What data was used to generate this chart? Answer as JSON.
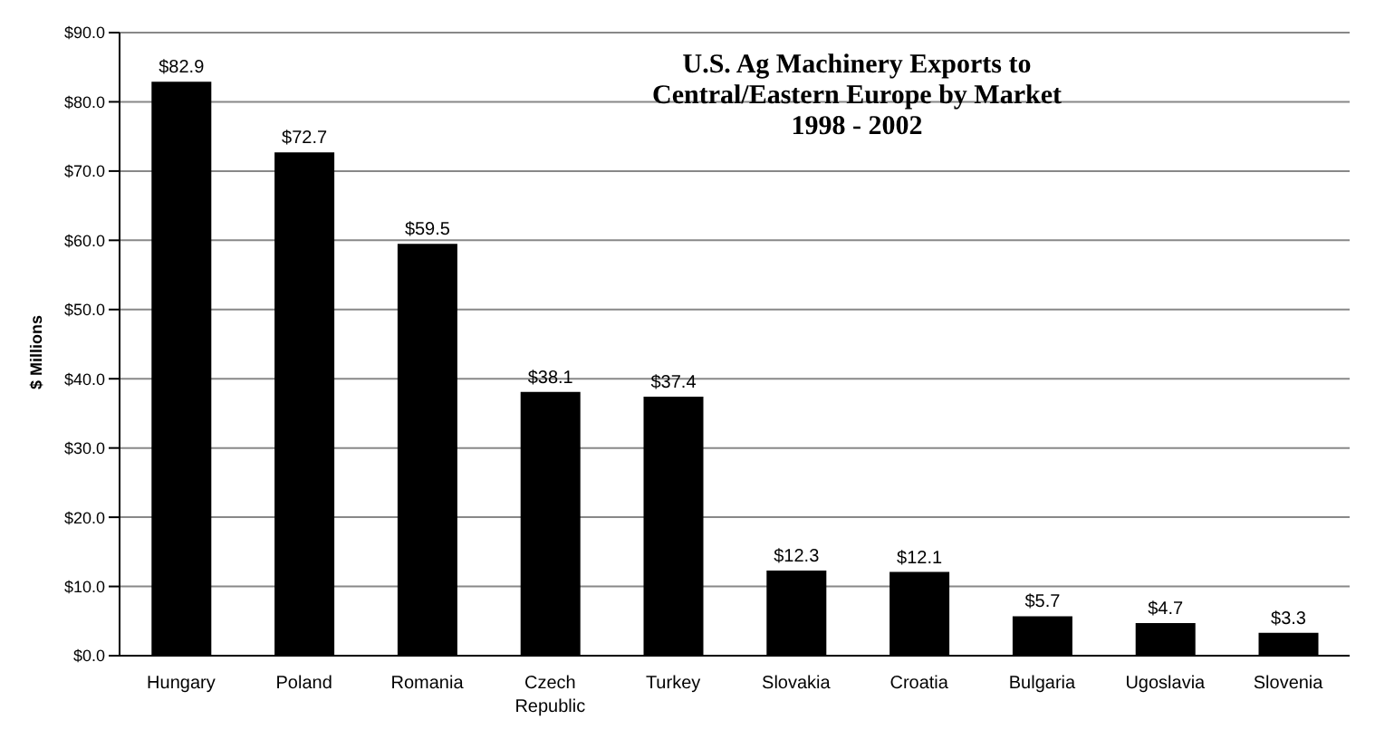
{
  "chart_data": {
    "type": "bar",
    "title": "U.S. Ag Machinery Exports to\nCentral/Eastern Europe by Market\n1998 - 2002",
    "ylabel": "$ Millions",
    "categories": [
      "Hungary",
      "Poland",
      "Romania",
      "Czech Republic",
      "Turkey",
      "Slovakia",
      "Croatia",
      "Bulgaria",
      "Ugoslavia",
      "Slovenia"
    ],
    "values": [
      82.9,
      72.7,
      59.5,
      38.1,
      37.4,
      12.3,
      12.1,
      5.7,
      4.7,
      3.3
    ],
    "value_labels": [
      "$82.9",
      "$72.7",
      "$59.5",
      "$38.1",
      "$37.4",
      "$12.3",
      "$12.1",
      "$5.7",
      "$4.7",
      "$3.3"
    ],
    "color": "#000000",
    "ylim": [
      0,
      90
    ],
    "yticks": [
      {
        "value": 0,
        "label": "$0.0"
      },
      {
        "value": 10,
        "label": "$10.0"
      },
      {
        "value": 20,
        "label": "$20.0"
      },
      {
        "value": 30,
        "label": "$30.0"
      },
      {
        "value": 40,
        "label": "$40.0"
      },
      {
        "value": 50,
        "label": "$50.0"
      },
      {
        "value": 60,
        "label": "$60.0"
      },
      {
        "value": 70,
        "label": "$70.0"
      },
      {
        "value": 80,
        "label": "$80.0"
      },
      {
        "value": 90,
        "label": "$90.0"
      }
    ],
    "grid": "y",
    "legend": false
  }
}
